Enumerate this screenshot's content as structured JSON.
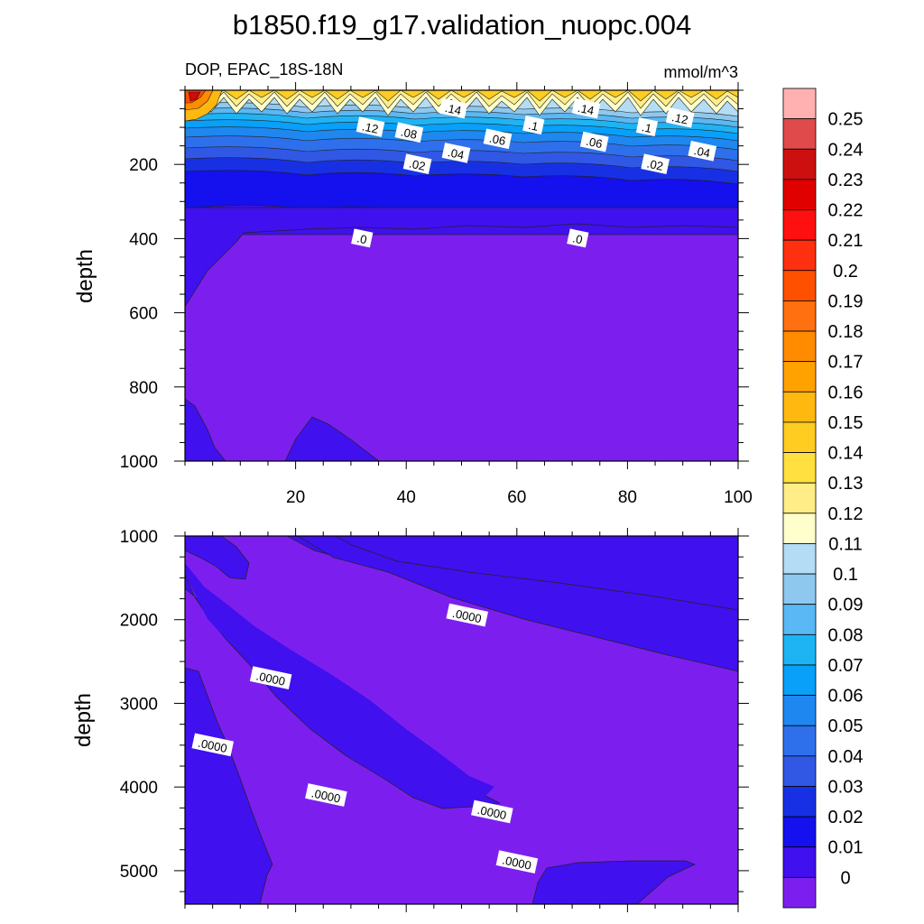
{
  "title": "b1850.f19_g17.validation_nuopc.004",
  "chart_data": [
    {
      "type": "contour",
      "panel": "upper",
      "subtitle_left": "DOP, EPAC_18S-18N",
      "subtitle_right": "mmol/m^3",
      "ylabel": "depth",
      "xlim": [
        0,
        100
      ],
      "ylim": [
        1000,
        0
      ],
      "xticks": [
        "20",
        "40",
        "60",
        "80",
        "100"
      ],
      "yticks": [
        "200",
        "400",
        "600",
        "800",
        "1000"
      ],
      "contour_labels": [
        {
          "text": ".14",
          "x": 48.5,
          "y": 50
        },
        {
          "text": ".14",
          "x": 72.5,
          "y": 50
        },
        {
          "text": ".12",
          "x": 33.5,
          "y": 100
        },
        {
          "text": ".12",
          "x": 89.5,
          "y": 75
        },
        {
          "text": ".1",
          "x": 63.0,
          "y": 95
        },
        {
          "text": ".1",
          "x": 83.5,
          "y": 100
        },
        {
          "text": ".08",
          "x": 40.5,
          "y": 115
        },
        {
          "text": ".06",
          "x": 56.5,
          "y": 132
        },
        {
          "text": ".06",
          "x": 74.0,
          "y": 140
        },
        {
          "text": ".04",
          "x": 49.0,
          "y": 170
        },
        {
          "text": ".04",
          "x": 93.5,
          "y": 165
        },
        {
          "text": ".02",
          "x": 42.0,
          "y": 200
        },
        {
          "text": ".02",
          "x": 85.0,
          "y": 200
        },
        {
          "text": ".0",
          "x": 32.0,
          "y": 400
        },
        {
          "text": ".0",
          "x": 71.0,
          "y": 400
        }
      ]
    },
    {
      "type": "contour",
      "panel": "lower",
      "ylabel": "depth",
      "xlim": [
        0,
        100
      ],
      "ylim": [
        5400,
        1000
      ],
      "yticks": [
        "1000",
        "2000",
        "3000",
        "4000",
        "5000"
      ],
      "contour_labels": [
        {
          "text": ".0000",
          "x": 51.0,
          "y": 1950
        },
        {
          "text": ".0000",
          "x": 15.5,
          "y": 2700
        },
        {
          "text": ".0000",
          "x": 5.0,
          "y": 3500
        },
        {
          "text": ".0000",
          "x": 25.5,
          "y": 4100
        },
        {
          "text": ".0000",
          "x": 55.5,
          "y": 4300
        },
        {
          "text": ".0000",
          "x": 60.0,
          "y": 4900
        }
      ]
    }
  ],
  "colorbar": {
    "labels": [
      "0.25",
      "0.24",
      "0.23",
      "0.22",
      "0.21",
      "0.2",
      "0.19",
      "0.18",
      "0.17",
      "0.16",
      "0.15",
      "0.14",
      "0.13",
      "0.12",
      "0.11",
      "0.1",
      "0.09",
      "0.08",
      "0.07",
      "0.06",
      "0.05",
      "0.04",
      "0.03",
      "0.02",
      "0.01",
      "0"
    ],
    "colors": [
      "#ffb1b1",
      "#e04a4a",
      "#cc1010",
      "#e00000",
      "#ff1010",
      "#ff3010",
      "#ff5000",
      "#ff7010",
      "#ff8c00",
      "#ffa200",
      "#ffb810",
      "#ffcc22",
      "#ffe040",
      "#ffee88",
      "#ffffcc",
      "#b4dcf4",
      "#8ec8ee",
      "#5ab8f4",
      "#1eb4f4",
      "#08a0f8",
      "#1e88f0",
      "#2e70ec",
      "#3058e4",
      "#1830e4",
      "#1410ee",
      "#4010ee",
      "#7c1fee"
    ]
  }
}
